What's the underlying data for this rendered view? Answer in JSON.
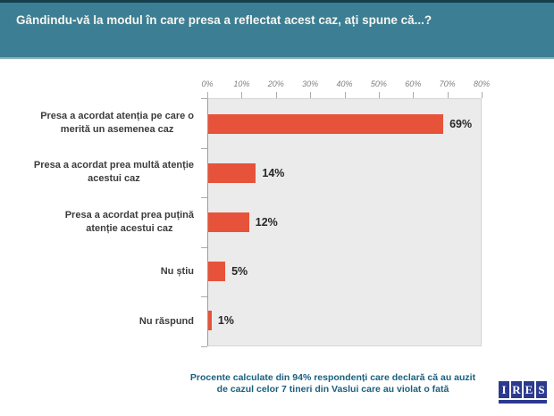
{
  "header": {
    "title": "Gândindu-vă la modul în care presa a reflectat acest caz, ați spune că...?"
  },
  "chart_data": {
    "type": "bar",
    "orientation": "horizontal",
    "title": "Gândindu-vă la modul în care presa a reflectat acest caz, ați spune că...?",
    "categories": [
      "Presa a acordat atenția pe care o\nmerită un asemenea caz",
      "Presa a acordat prea multă atenție\nacestui caz",
      "Presa a acordat prea puțină\natenție acestui caz",
      "Nu știu",
      "Nu răspund"
    ],
    "values": [
      69,
      14,
      12,
      5,
      1
    ],
    "value_labels": [
      "69%",
      "14%",
      "12%",
      "5%",
      "1%"
    ],
    "x_ticks": [
      "0%",
      "10%",
      "20%",
      "30%",
      "40%",
      "50%",
      "60%",
      "70%",
      "80%"
    ],
    "xlim": [
      0,
      80
    ],
    "xlabel": "",
    "ylabel": "",
    "grid": false,
    "legend": "none",
    "bar_color": "#E7533A",
    "plot_background": "#EBEBEB"
  },
  "footnote": {
    "text": "Procente calculate din 94% respondenți care declară că au auzit\nde cazul celor 7 tineri din Vaslui care au violat o fată"
  },
  "logo": {
    "letters": [
      "I",
      "R",
      "E",
      "S"
    ]
  },
  "colors": {
    "header_bg": "#3C7E93",
    "header_text": "#F6F6F1",
    "bar": "#E7533A",
    "plot_bg": "#EBEBEB",
    "footnote_text": "#19607F",
    "logo_blue": "#2B3A8E"
  }
}
